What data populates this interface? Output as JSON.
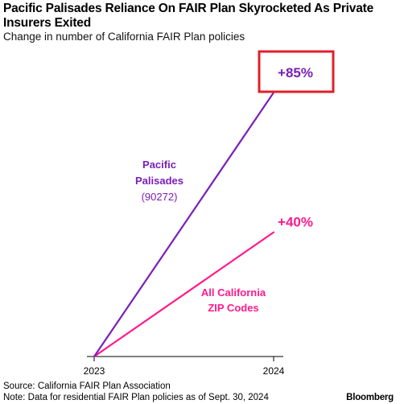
{
  "title": "Pacific Palisades Reliance On FAIR Plan Skyrocketed As Private Insurers Exited",
  "subtitle": "Change in number of California FAIR Plan policies",
  "source": "Source: California FAIR Plan Association",
  "note": "Note: Data for residential FAIR Plan policies as of Sept. 30, 2024",
  "brand": "Bloomberg",
  "colors": {
    "palisades": "#7a1fb8",
    "california": "#ff1a8c",
    "highlight_box": "#e0202a",
    "axis": "#000000"
  },
  "chart_data": {
    "type": "line",
    "x": [
      "2023",
      "2024"
    ],
    "series": [
      {
        "key": "palisades",
        "name_lines": [
          "Pacific",
          "Palisades",
          "(90272)"
        ],
        "values": [
          0,
          85
        ],
        "end_label": "+85%"
      },
      {
        "key": "california",
        "name_lines": [
          "All California",
          "ZIP Codes"
        ],
        "values": [
          0,
          40
        ],
        "end_label": "+40%"
      }
    ],
    "xlabel": "",
    "ylabel": "",
    "ylim": [
      0,
      85
    ],
    "highlight": "+85%",
    "grid": false
  }
}
